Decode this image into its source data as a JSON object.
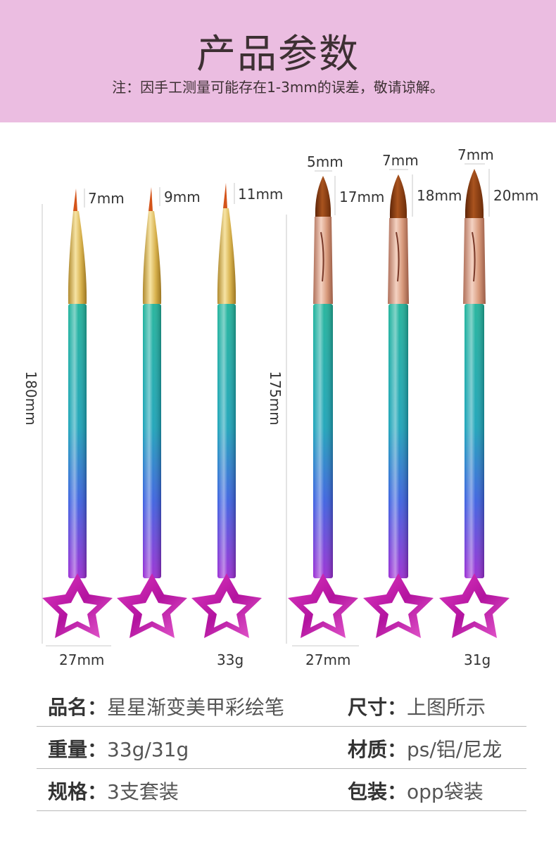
{
  "header": {
    "title": "产品参数",
    "note": "注：因手工测量可能存在1-3mm的误差，敬请谅解。"
  },
  "measurements": {
    "tip_lengths_liner": [
      "7mm",
      "9mm",
      "11mm"
    ],
    "tip_widths_brush": [
      "5mm",
      "7mm",
      "7mm"
    ],
    "tip_lengths_brush": [
      "17mm",
      "18mm",
      "20mm"
    ],
    "length_set1": "180mm",
    "length_set2": "175mm",
    "width_set1": "27mm",
    "width_set2": "27mm",
    "weight_set1": "33g",
    "weight_set2": "31g"
  },
  "colors": {
    "banner": "#ebbde1",
    "handle_top": "#1fb39a",
    "handle_bottom": "#8a2bd6",
    "star": "#c21bb5",
    "gold": "#d9b54f",
    "rose_gold": "#d89a7c",
    "bristle": "#8a3e12"
  },
  "specs": {
    "rows": [
      {
        "left_label": "品名：",
        "left_value": "星星渐变美甲彩绘笔",
        "right_label": "尺寸：",
        "right_value": "上图所示"
      },
      {
        "left_label": "重量：",
        "left_value": "33g/31g",
        "right_label": "材质：",
        "right_value": "ps/铝/尼龙"
      },
      {
        "left_label": "规格：",
        "left_value": "3支套装",
        "right_label": "包装：",
        "right_value": "opp袋装"
      }
    ]
  }
}
